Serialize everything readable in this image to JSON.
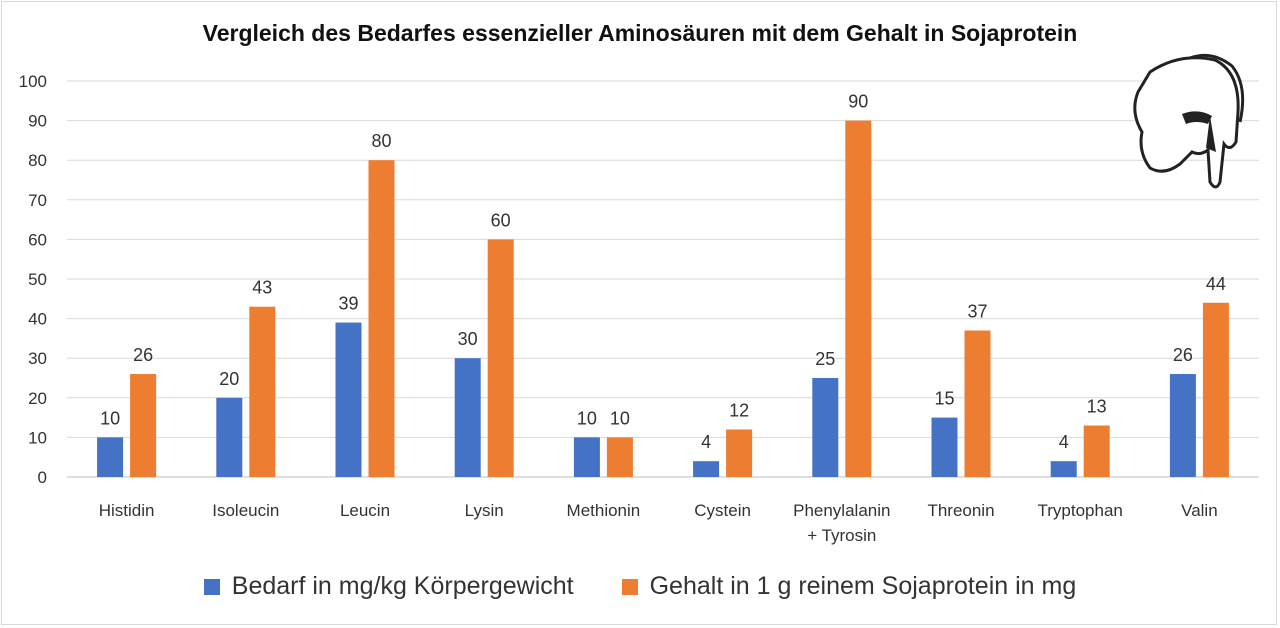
{
  "colors": {
    "series1": "#4472c4",
    "series2": "#ed7d31",
    "grid": "#d9d9d9",
    "text": "#333333"
  },
  "logo": {
    "icon": "spartan-helmet-icon"
  },
  "chart_data": {
    "type": "bar",
    "title": "Vergleich des Bedarfes essenzieller Aminosäuren mit dem Gehalt in Sojaprotein",
    "xlabel": "",
    "ylabel": "",
    "ylim": [
      0,
      100
    ],
    "yticks": [
      0,
      10,
      20,
      30,
      40,
      50,
      60,
      70,
      80,
      90,
      100
    ],
    "grid": true,
    "legend_position": "bottom",
    "data_labels": true,
    "categories": [
      [
        "Histidin"
      ],
      [
        "Isoleucin"
      ],
      [
        "Leucin"
      ],
      [
        "Lysin"
      ],
      [
        "Methionin"
      ],
      [
        "Cystein"
      ],
      [
        "Phenylalanin",
        "+ Tyrosin"
      ],
      [
        "Threonin"
      ],
      [
        "Tryptophan"
      ],
      [
        "Valin"
      ]
    ],
    "series": [
      {
        "name": "Bedarf in mg/kg Körpergewicht",
        "color": "#4472c4",
        "values": [
          10,
          20,
          39,
          30,
          10,
          4,
          25,
          15,
          4,
          26
        ]
      },
      {
        "name": "Gehalt in 1 g reinem Sojaprotein in mg",
        "color": "#ed7d31",
        "values": [
          26,
          43,
          80,
          60,
          10,
          12,
          90,
          37,
          13,
          44
        ]
      }
    ]
  }
}
